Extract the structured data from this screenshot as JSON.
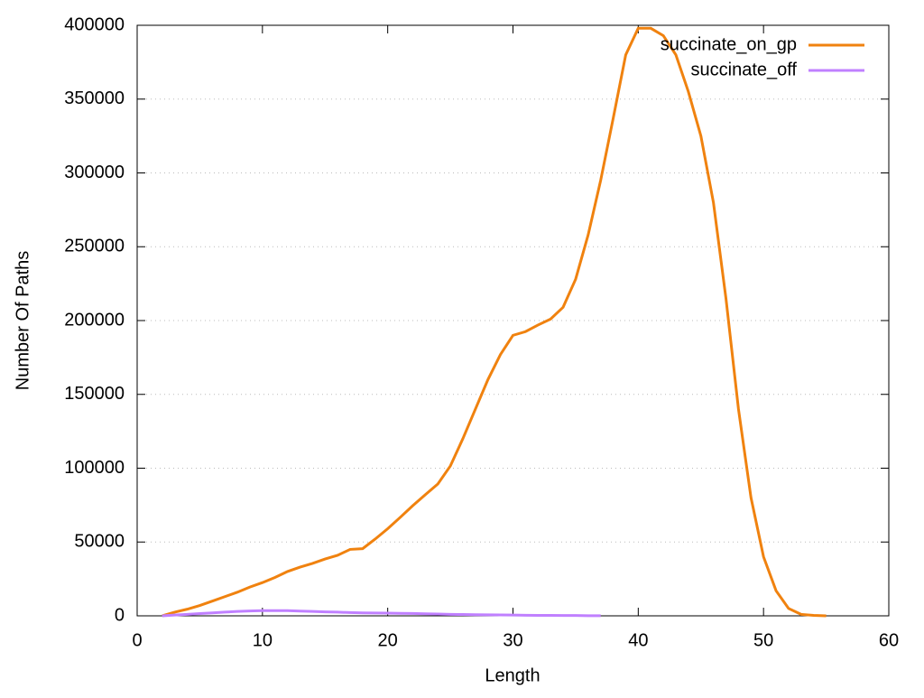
{
  "chart_data": {
    "type": "line",
    "xlabel": "Length",
    "ylabel": "Number Of Paths",
    "xlim": [
      0,
      60
    ],
    "xticks": [
      0,
      10,
      20,
      30,
      40,
      50,
      60
    ],
    "ylim": [
      0,
      400000
    ],
    "yticks": [
      0,
      50000,
      100000,
      150000,
      200000,
      250000,
      300000,
      350000,
      400000
    ],
    "grid": true,
    "legend": "top-right",
    "series": [
      {
        "name": "succinate_on_gp",
        "color": "#f0820f",
        "x": [
          2,
          3,
          4,
          5,
          6,
          7,
          8,
          9,
          10,
          11,
          12,
          13,
          14,
          15,
          16,
          17,
          18,
          19,
          20,
          21,
          22,
          23,
          24,
          25,
          26,
          27,
          28,
          29,
          30,
          31,
          32,
          33,
          34,
          35,
          36,
          37,
          38,
          39,
          40,
          41,
          42,
          43,
          44,
          45,
          46,
          47,
          48,
          49,
          50,
          51,
          52,
          53,
          54,
          55
        ],
        "values": [
          0,
          2500,
          4500,
          7000,
          10000,
          13000,
          16000,
          19500,
          22500,
          26000,
          30000,
          33000,
          35500,
          38500,
          41000,
          45000,
          45500,
          52000,
          59000,
          66700,
          74600,
          82000,
          89300,
          101500,
          120000,
          140000,
          160000,
          177000,
          190000,
          192500,
          197000,
          201000,
          209000,
          228000,
          258000,
          295000,
          337000,
          380000,
          398000,
          398000,
          393000,
          380000,
          355000,
          325000,
          280000,
          215000,
          140000,
          80000,
          40000,
          17000,
          5000,
          1000,
          300,
          0
        ]
      },
      {
        "name": "succinate_off",
        "color": "#c080ff",
        "x": [
          2,
          3,
          4,
          5,
          6,
          7,
          8,
          9,
          10,
          11,
          12,
          13,
          14,
          15,
          16,
          17,
          18,
          19,
          20,
          21,
          22,
          23,
          24,
          25,
          26,
          27,
          28,
          29,
          30,
          31,
          32,
          33,
          34,
          35,
          36,
          37
        ],
        "values": [
          0,
          500,
          1000,
          1500,
          2000,
          2500,
          3000,
          3300,
          3500,
          3500,
          3500,
          3200,
          3000,
          2700,
          2500,
          2200,
          2000,
          1900,
          1800,
          1700,
          1600,
          1400,
          1200,
          1000,
          900,
          800,
          700,
          600,
          500,
          400,
          300,
          300,
          200,
          200,
          100,
          100
        ]
      }
    ]
  }
}
